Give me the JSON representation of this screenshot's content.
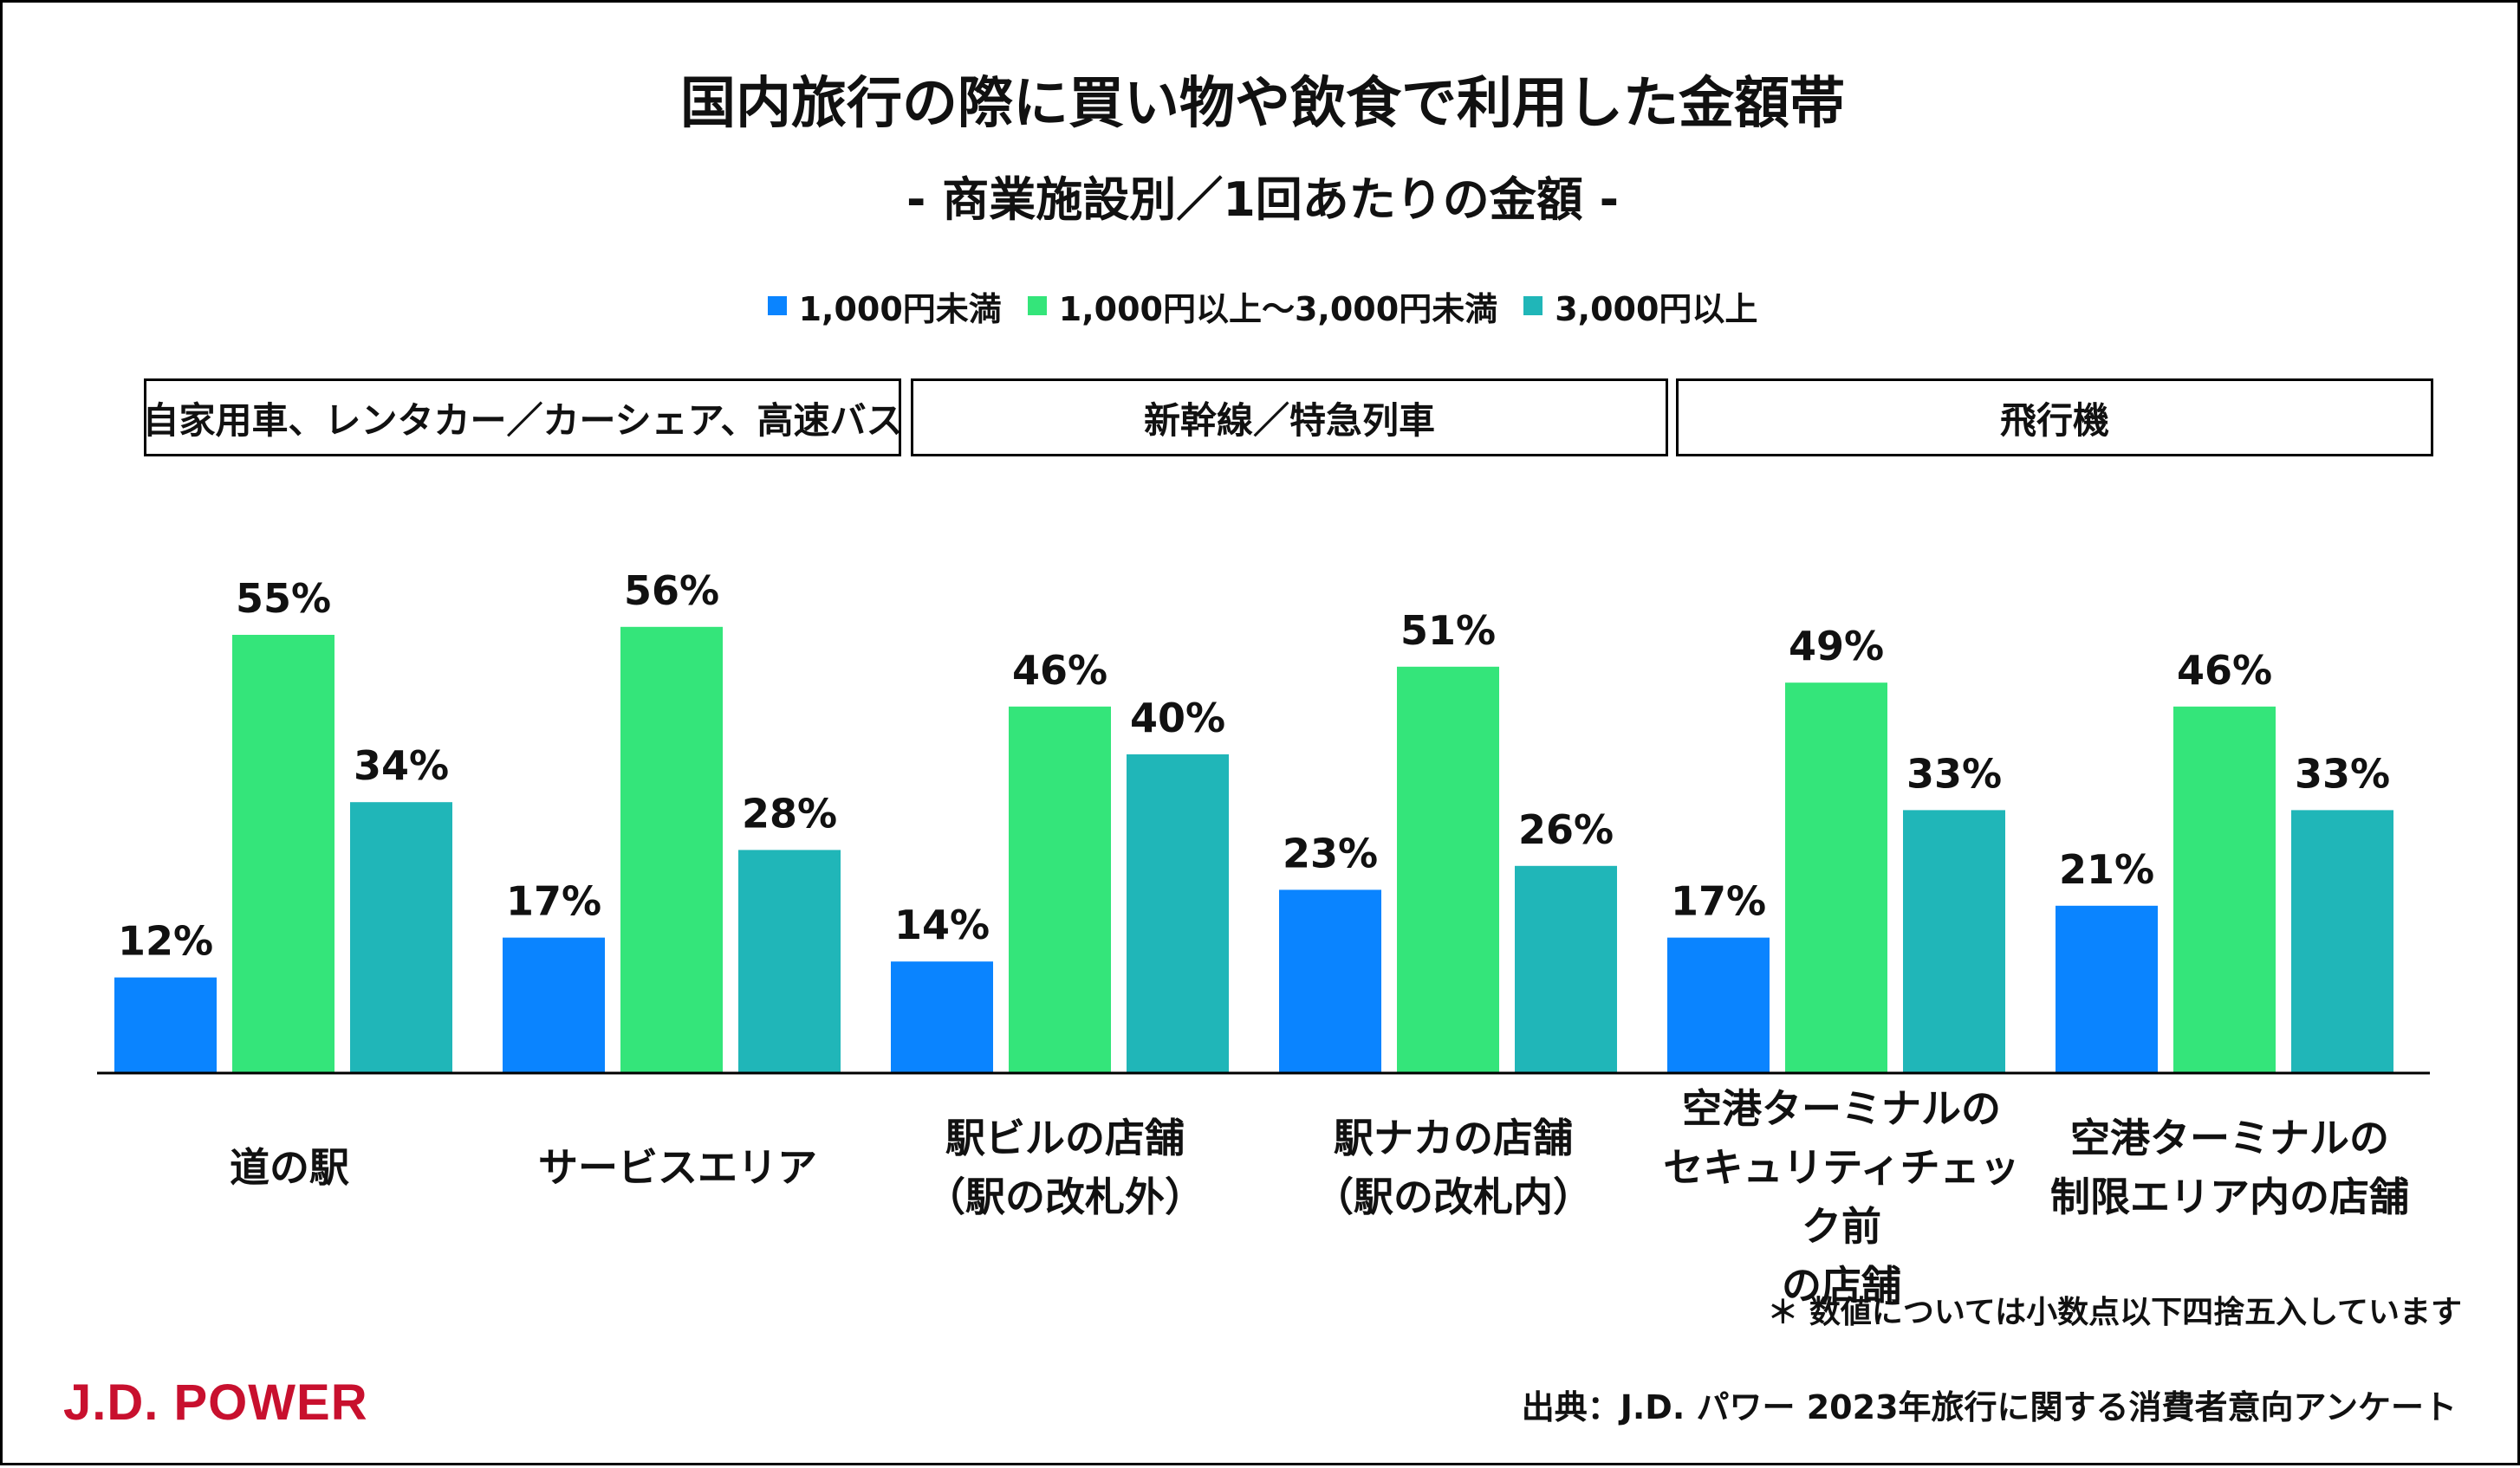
{
  "title": "国内旅行の際に買い物や飲食で利用した金額帯",
  "subtitle": "- 商業施設別／1回あたりの金額 -",
  "groups": [
    {
      "label": "自家用車、レンタカー／カーシェア、高速バス"
    },
    {
      "label": "新幹線／特急列車"
    },
    {
      "label": "飛行機"
    }
  ],
  "chart_data": {
    "type": "bar",
    "title": "国内旅行の際に買い物や飲食で利用した金額帯",
    "subtitle": "- 商業施設別／1回あたりの金額 -",
    "categories": [
      [
        "道の駅"
      ],
      [
        "サービスエリア"
      ],
      [
        "駅ビルの店舗",
        "（駅の改札外）"
      ],
      [
        "駅ナカの店舗",
        "（駅の改札内）"
      ],
      [
        "空港ターミナルの",
        "セキュリティチェック前",
        "の店舗"
      ],
      [
        "空港ターミナルの",
        "制限エリア内の店舗"
      ]
    ],
    "series": [
      {
        "name": "1,000円未満",
        "color": "#0a84ff",
        "values": [
          12,
          17,
          14,
          23,
          17,
          21
        ]
      },
      {
        "name": "1,000円以上～3,000円未満",
        "color": "#34e57a",
        "values": [
          55,
          56,
          46,
          51,
          49,
          46
        ]
      },
      {
        "name": "3,000円以上",
        "color": "#20b6b8",
        "values": [
          34,
          28,
          40,
          26,
          33,
          33
        ]
      }
    ],
    "value_suffix": "%",
    "ylim": [
      0,
      60
    ],
    "xlabel": "",
    "ylabel": "",
    "grid": false,
    "legend": "top-center"
  },
  "footer": {
    "note": "＊ 数値については小数点以下四捨五入しています",
    "source": "出典：J.D. パワー 2023年旅行に関する消費者意向アンケート",
    "logo": "J.D. POWER"
  },
  "colors": {
    "logo": "#c8102e",
    "axis": "#000000"
  }
}
